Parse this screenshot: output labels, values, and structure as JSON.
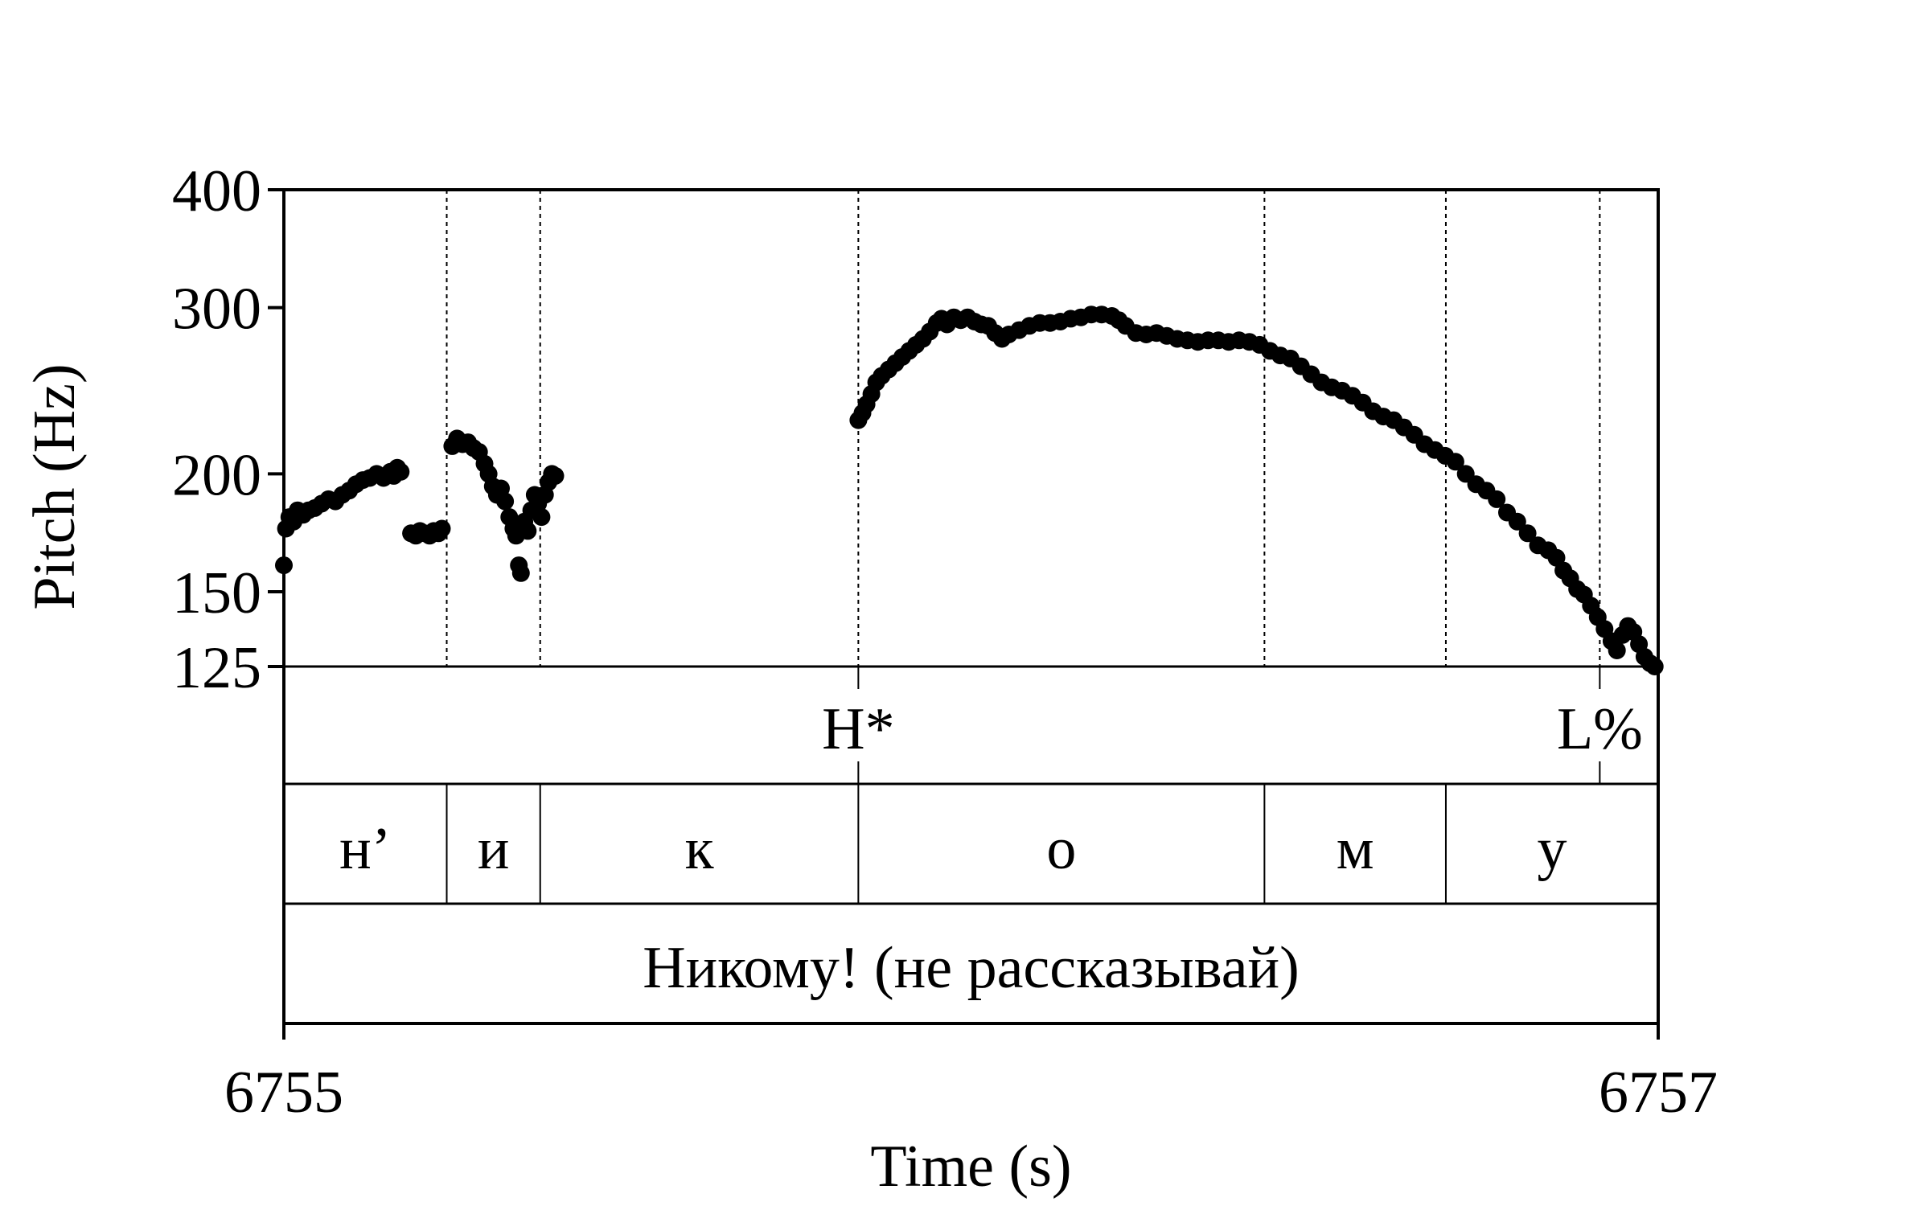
{
  "chart_data": {
    "type": "scatter",
    "xlabel": "Time (s)",
    "ylabel": "Pitch (Hz)",
    "xlim": [
      6755,
      6757
    ],
    "ylim": [
      125,
      400
    ],
    "y_scale": "log",
    "x_tick_labels": [
      "6755",
      "6757"
    ],
    "y_ticks": [
      125,
      150,
      200,
      300,
      400
    ],
    "y_tick_labels": [
      "125",
      "150",
      "200",
      "300",
      "400"
    ],
    "grid": false,
    "legend": "none",
    "boundaries": [
      6755.237,
      6755.373,
      6755.836,
      6756.427,
      6756.691,
      6756.915
    ],
    "tones": [
      {
        "label": "H*",
        "time": 6755.836
      },
      {
        "label": "L%",
        "time": 6756.915
      }
    ],
    "segments": [
      {
        "label": "н’",
        "start": 6755.0,
        "end": 6755.237
      },
      {
        "label": "и",
        "start": 6755.237,
        "end": 6755.373
      },
      {
        "label": "к",
        "start": 6755.373,
        "end": 6755.836
      },
      {
        "label": "о",
        "start": 6755.836,
        "end": 6756.427
      },
      {
        "label": "м",
        "start": 6756.427,
        "end": 6756.691
      },
      {
        "label": "у",
        "start": 6756.691,
        "end": 6757.0
      }
    ],
    "phrase": "Никому! (не рассказывай)",
    "series": [
      {
        "points": [
          [
            6755.0,
            160
          ],
          [
            6755.003,
            175
          ],
          [
            6755.008,
            180
          ],
          [
            6755.014,
            178
          ],
          [
            6755.02,
            183
          ],
          [
            6755.028,
            181
          ],
          [
            6755.036,
            183
          ],
          [
            6755.045,
            184
          ],
          [
            6755.055,
            186
          ],
          [
            6755.065,
            188
          ],
          [
            6755.075,
            187
          ],
          [
            6755.085,
            190
          ],
          [
            6755.095,
            192
          ],
          [
            6755.105,
            195
          ],
          [
            6755.115,
            197
          ],
          [
            6755.125,
            198
          ],
          [
            6755.135,
            200
          ],
          [
            6755.145,
            198
          ],
          [
            6755.155,
            201
          ],
          [
            6755.16,
            199
          ],
          [
            6755.165,
            203
          ],
          [
            6755.17,
            201
          ],
          [
            6755.185,
            173
          ],
          [
            6755.192,
            172
          ],
          [
            6755.198,
            174
          ],
          [
            6755.205,
            173
          ],
          [
            6755.212,
            172
          ],
          [
            6755.218,
            174
          ],
          [
            6755.225,
            173
          ],
          [
            6755.23,
            175
          ],
          [
            6755.245,
            214
          ],
          [
            6755.252,
            218
          ],
          [
            6755.26,
            215
          ],
          [
            6755.268,
            216
          ],
          [
            6755.276,
            213
          ],
          [
            6755.284,
            211
          ],
          [
            6755.292,
            205
          ],
          [
            6755.298,
            200
          ],
          [
            6755.304,
            194
          ],
          [
            6755.31,
            190
          ],
          [
            6755.316,
            193
          ],
          [
            6755.322,
            187
          ],
          [
            6755.328,
            180
          ],
          [
            6755.334,
            175
          ],
          [
            6755.338,
            172
          ],
          [
            6755.342,
            160
          ],
          [
            6755.345,
            157
          ],
          [
            6755.35,
            178
          ],
          [
            6755.355,
            174
          ],
          [
            6755.36,
            183
          ],
          [
            6755.365,
            190
          ],
          [
            6755.37,
            186
          ],
          [
            6755.375,
            180
          ],
          [
            6755.38,
            190
          ],
          [
            6755.385,
            196
          ],
          [
            6755.39,
            200
          ],
          [
            6755.395,
            199
          ],
          [
            6755.836,
            228
          ],
          [
            6755.842,
            232
          ],
          [
            6755.848,
            237
          ],
          [
            6755.855,
            243
          ],
          [
            6755.862,
            250
          ],
          [
            6755.87,
            254
          ],
          [
            6755.88,
            258
          ],
          [
            6755.89,
            262
          ],
          [
            6755.9,
            266
          ],
          [
            6755.91,
            270
          ],
          [
            6755.92,
            274
          ],
          [
            6755.93,
            278
          ],
          [
            6755.94,
            283
          ],
          [
            6755.95,
            289
          ],
          [
            6755.957,
            292
          ],
          [
            6755.965,
            288
          ],
          [
            6755.975,
            293
          ],
          [
            6755.985,
            291
          ],
          [
            6755.995,
            293
          ],
          [
            6756.005,
            290
          ],
          [
            6756.015,
            288
          ],
          [
            6756.025,
            287
          ],
          [
            6756.035,
            282
          ],
          [
            6756.045,
            278
          ],
          [
            6756.055,
            281
          ],
          [
            6756.07,
            284
          ],
          [
            6756.085,
            287
          ],
          [
            6756.1,
            289
          ],
          [
            6756.115,
            289
          ],
          [
            6756.13,
            290
          ],
          [
            6756.145,
            292
          ],
          [
            6756.16,
            293
          ],
          [
            6756.175,
            295
          ],
          [
            6756.19,
            295
          ],
          [
            6756.205,
            294
          ],
          [
            6756.215,
            291
          ],
          [
            6756.225,
            287
          ],
          [
            6756.24,
            282
          ],
          [
            6756.255,
            281
          ],
          [
            6756.27,
            282
          ],
          [
            6756.285,
            280
          ],
          [
            6756.3,
            278
          ],
          [
            6756.315,
            277
          ],
          [
            6756.33,
            276
          ],
          [
            6756.345,
            277
          ],
          [
            6756.36,
            277
          ],
          [
            6756.375,
            276
          ],
          [
            6756.39,
            277
          ],
          [
            6756.405,
            276
          ],
          [
            6756.42,
            274
          ],
          [
            6756.435,
            270
          ],
          [
            6756.45,
            267
          ],
          [
            6756.465,
            265
          ],
          [
            6756.48,
            260
          ],
          [
            6756.495,
            255
          ],
          [
            6756.51,
            250
          ],
          [
            6756.525,
            247
          ],
          [
            6756.54,
            245
          ],
          [
            6756.555,
            242
          ],
          [
            6756.57,
            238
          ],
          [
            6756.585,
            233
          ],
          [
            6756.6,
            230
          ],
          [
            6756.615,
            228
          ],
          [
            6756.63,
            224
          ],
          [
            6756.645,
            220
          ],
          [
            6756.66,
            215
          ],
          [
            6756.675,
            212
          ],
          [
            6756.69,
            209
          ],
          [
            6756.705,
            206
          ],
          [
            6756.72,
            200
          ],
          [
            6756.735,
            195
          ],
          [
            6756.75,
            192
          ],
          [
            6756.765,
            188
          ],
          [
            6756.78,
            182
          ],
          [
            6756.795,
            178
          ],
          [
            6756.81,
            173
          ],
          [
            6756.825,
            168
          ],
          [
            6756.84,
            166
          ],
          [
            6756.852,
            163
          ],
          [
            6756.862,
            158
          ],
          [
            6756.872,
            155
          ],
          [
            6756.882,
            151
          ],
          [
            6756.892,
            149
          ],
          [
            6756.902,
            145
          ],
          [
            6756.912,
            141
          ],
          [
            6756.922,
            137
          ],
          [
            6756.932,
            133
          ],
          [
            6756.94,
            130
          ],
          [
            6756.948,
            135
          ],
          [
            6756.956,
            138
          ],
          [
            6756.964,
            136
          ],
          [
            6756.972,
            132
          ],
          [
            6756.98,
            128
          ],
          [
            6756.988,
            126
          ],
          [
            6756.995,
            125
          ]
        ]
      }
    ]
  }
}
